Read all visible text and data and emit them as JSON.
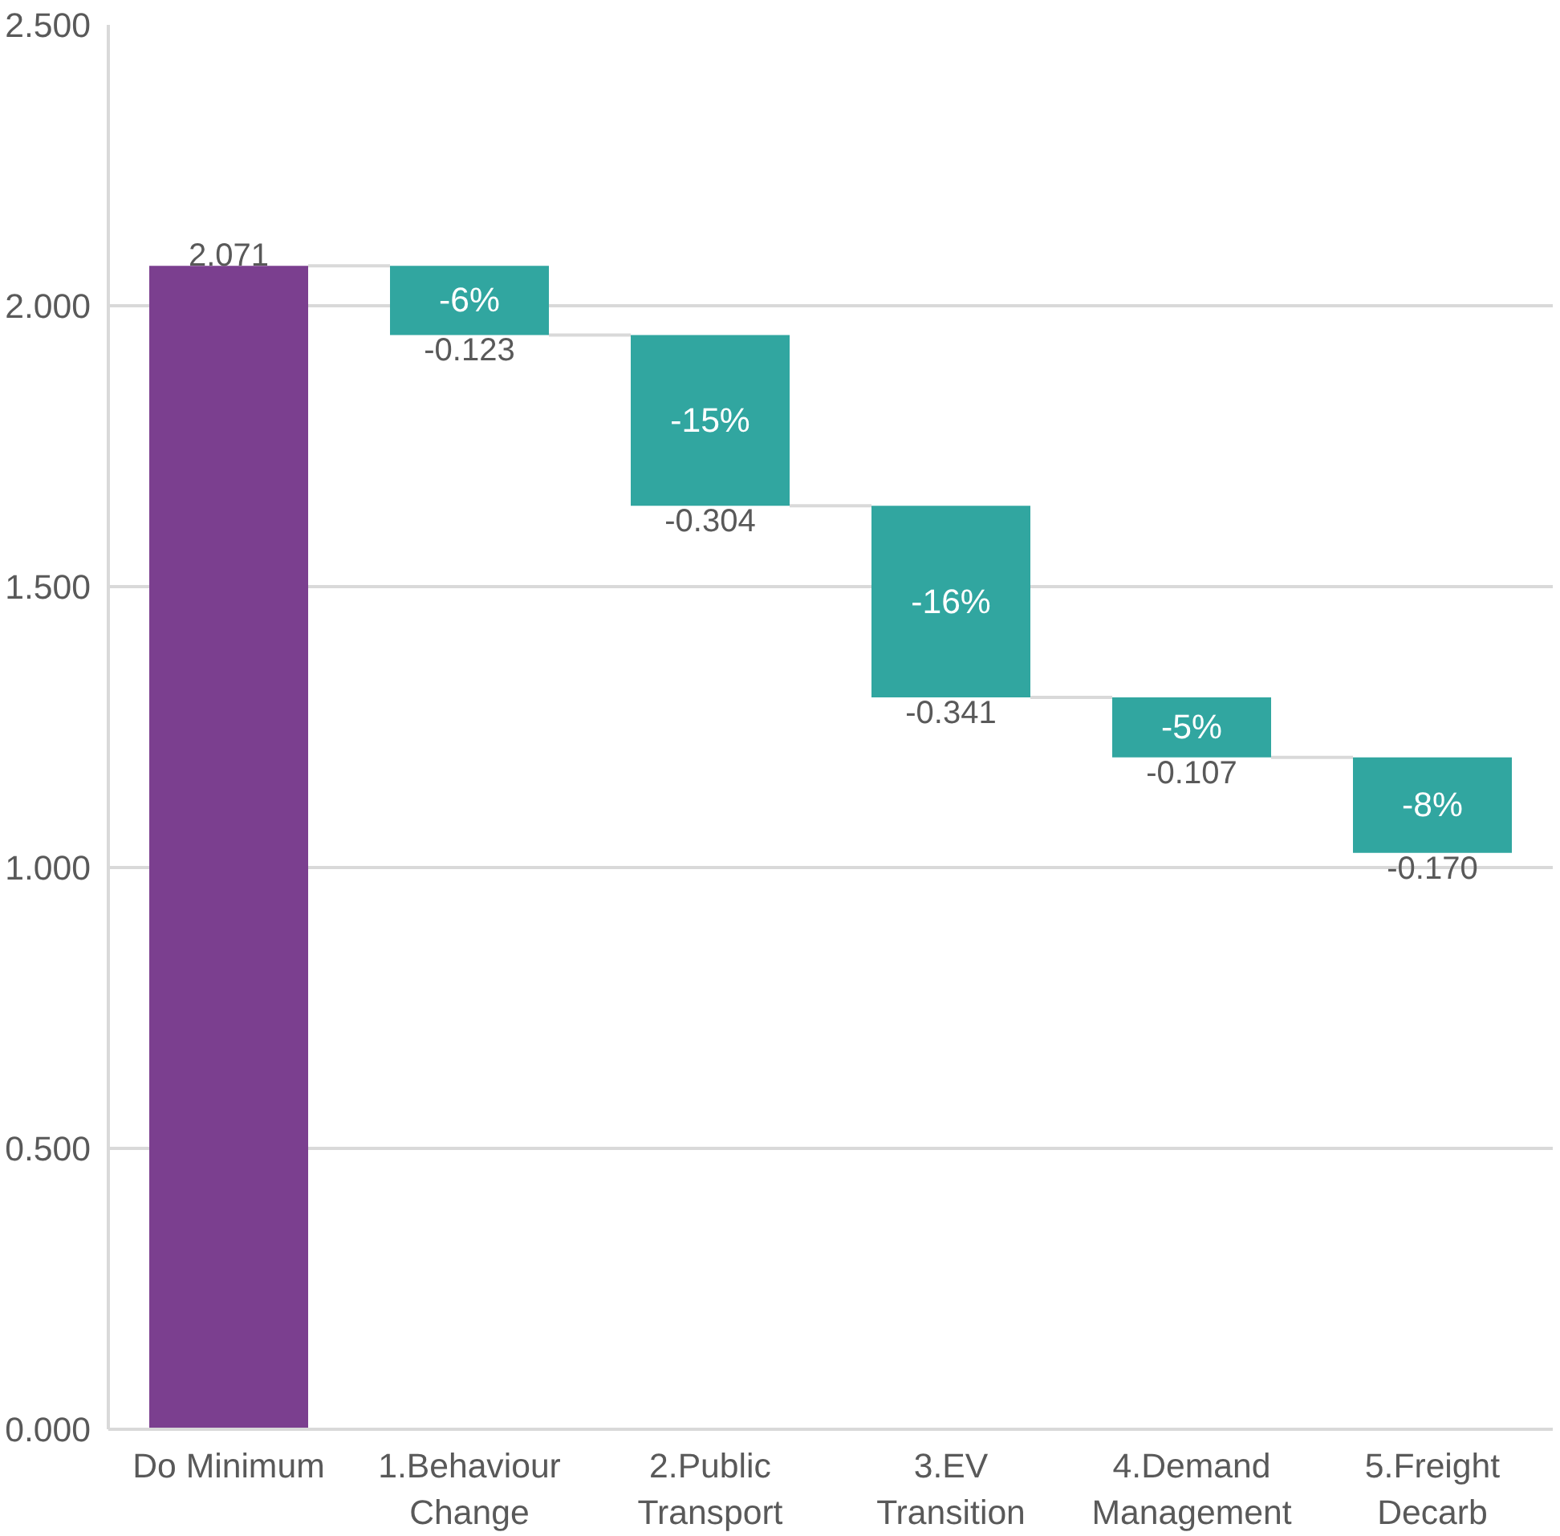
{
  "chart_data": {
    "type": "bar",
    "categories": [
      "Do Minimum",
      "1.Behaviour\nChange",
      "2.Public\nTransport",
      "3.EV\nTransition",
      "4.Demand\nManagement",
      "5.Freight\nDecarb"
    ],
    "values": [
      2.071,
      -0.123,
      -0.304,
      -0.341,
      -0.107,
      -0.17
    ],
    "base": [
      0,
      2.071,
      1.948,
      1.644,
      1.303,
      1.196
    ],
    "colors": [
      "#7b3f8f",
      "#31a6a0",
      "#31a6a0",
      "#31a6a0",
      "#31a6a0",
      "#31a6a0"
    ],
    "value_labels": [
      "2.071",
      "-0.123",
      "-0.304",
      "-0.341",
      "-0.107",
      "-0.170"
    ],
    "annotations": [
      "-6%",
      "-15%",
      "-16%",
      "-5%",
      "-8%"
    ],
    "ylim": [
      0,
      2.5
    ],
    "yticks": [
      {
        "value": 0,
        "label": "0.000"
      },
      {
        "value": 0.5,
        "label": "0.500"
      },
      {
        "value": 1,
        "label": "1.000"
      },
      {
        "value": 1.5,
        "label": "1.500"
      },
      {
        "value": 2,
        "label": "2.000"
      },
      {
        "value": 2.5,
        "label": "2.500"
      }
    ],
    "grid": "y"
  }
}
